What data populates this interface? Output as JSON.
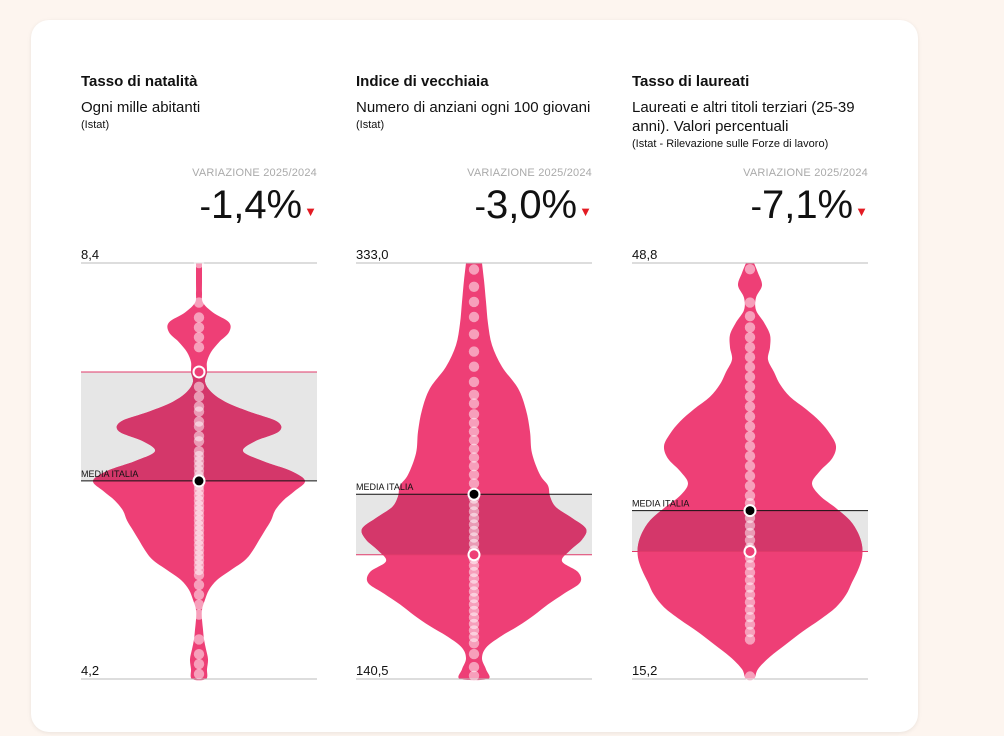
{
  "colors": {
    "violin": "#ee3f76",
    "violin_over_band": "#d4376a",
    "band": "#e6e6e6",
    "band_edge": "#e03a6a",
    "dot": "#ffffff",
    "decline": "#e31b23"
  },
  "chart_data": [
    {
      "type": "violin",
      "title": "Tasso di natalità",
      "subtitle": "Ogni mille abitanti",
      "source": "(Istat)",
      "variation_label": "VARIAZIONE 2025/2024",
      "variation_sign": "-",
      "variation_value": "1,4%",
      "variation_arrow": "▼",
      "y_max_label": "8,4",
      "y_min_label": "4,2",
      "ylim": [
        4.2,
        8.4
      ],
      "italy_average": {
        "label": "MEDIA ITALIA",
        "value": 6.2
      },
      "highlight": 7.3,
      "density": [
        [
          8.4,
          3
        ],
        [
          8.3,
          3
        ],
        [
          8.2,
          3
        ],
        [
          8.1,
          3
        ],
        [
          8.0,
          4
        ],
        [
          7.9,
          14
        ],
        [
          7.8,
          30
        ],
        [
          7.7,
          30
        ],
        [
          7.6,
          20
        ],
        [
          7.5,
          12
        ],
        [
          7.4,
          8
        ],
        [
          7.3,
          8
        ],
        [
          7.2,
          6
        ],
        [
          7.1,
          12
        ],
        [
          7.0,
          26
        ],
        [
          6.9,
          50
        ],
        [
          6.8,
          78
        ],
        [
          6.7,
          80
        ],
        [
          6.6,
          56
        ],
        [
          6.5,
          44
        ],
        [
          6.4,
          64
        ],
        [
          6.3,
          92
        ],
        [
          6.2,
          106
        ],
        [
          6.1,
          96
        ],
        [
          6.0,
          84
        ],
        [
          5.9,
          76
        ],
        [
          5.8,
          72
        ],
        [
          5.7,
          66
        ],
        [
          5.6,
          60
        ],
        [
          5.5,
          54
        ],
        [
          5.4,
          46
        ],
        [
          5.3,
          32
        ],
        [
          5.2,
          18
        ],
        [
          5.1,
          10
        ],
        [
          5.0,
          6
        ],
        [
          4.9,
          3
        ],
        [
          4.8,
          3
        ],
        [
          4.7,
          4
        ],
        [
          4.6,
          5
        ],
        [
          4.5,
          7
        ],
        [
          4.4,
          9
        ],
        [
          4.3,
          8
        ],
        [
          4.2,
          7
        ]
      ],
      "points": [
        8.4,
        8.0,
        7.85,
        7.75,
        7.65,
        7.55,
        7.3,
        7.15,
        7.05,
        6.95,
        6.9,
        6.8,
        6.75,
        6.65,
        6.6,
        6.5,
        6.45,
        6.4,
        6.35,
        6.3,
        6.25,
        6.2,
        6.2,
        6.15,
        6.1,
        6.05,
        6.0,
        5.95,
        5.9,
        5.85,
        5.8,
        5.75,
        5.7,
        5.65,
        5.6,
        5.55,
        5.5,
        5.45,
        5.4,
        5.35,
        5.3,
        5.25,
        5.15,
        5.05,
        4.95,
        4.85,
        4.6,
        4.45,
        4.35,
        4.25
      ]
    },
    {
      "type": "violin",
      "title": "Indice di vecchiaia",
      "subtitle": "Numero di anziani ogni 100 giovani",
      "source": "(Istat)",
      "variation_label": "VARIAZIONE 2025/2024",
      "variation_sign": "-",
      "variation_value": "3,0%",
      "variation_arrow": "▼",
      "y_max_label": "333,0",
      "y_min_label": "140,5",
      "ylim": [
        140.5,
        333.0
      ],
      "italy_average": {
        "label": "MEDIA ITALIA",
        "value": 226
      },
      "highlight": 198,
      "density": [
        [
          333,
          8
        ],
        [
          325,
          10
        ],
        [
          315,
          12
        ],
        [
          305,
          14
        ],
        [
          295,
          18
        ],
        [
          285,
          28
        ],
        [
          275,
          44
        ],
        [
          265,
          52
        ],
        [
          255,
          56
        ],
        [
          245,
          58
        ],
        [
          235,
          66
        ],
        [
          230,
          74
        ],
        [
          225,
          76
        ],
        [
          220,
          82
        ],
        [
          215,
          98
        ],
        [
          210,
          112
        ],
        [
          205,
          108
        ],
        [
          200,
          96
        ],
        [
          195,
          88
        ],
        [
          190,
          104
        ],
        [
          185,
          106
        ],
        [
          180,
          90
        ],
        [
          175,
          74
        ],
        [
          170,
          60
        ],
        [
          165,
          44
        ],
        [
          160,
          26
        ],
        [
          155,
          12
        ],
        [
          150,
          8
        ],
        [
          145,
          12
        ],
        [
          140.5,
          14
        ]
      ],
      "points": [
        330,
        322,
        315,
        308,
        300,
        292,
        285,
        278,
        272,
        268,
        263,
        259,
        255,
        251,
        247,
        243,
        239,
        235,
        231,
        226,
        224,
        221,
        218,
        215,
        212,
        209,
        206,
        203,
        200,
        198,
        196,
        193,
        190,
        187,
        184,
        181,
        178,
        175,
        172,
        169,
        166,
        163,
        160,
        157,
        152,
        146,
        142
      ]
    },
    {
      "type": "violin",
      "title": "Tasso di laureati",
      "subtitle": "Laureati e altri titoli terziari (25-39 anni). Valori percentuali",
      "source": "(Istat - Rilevazione sulle Forze di lavoro)",
      "variation_label": "VARIAZIONE 2025/2024",
      "variation_sign": "-",
      "variation_value": "7,1%",
      "variation_arrow": "▼",
      "y_max_label": "48,8",
      "y_min_label": "15,2",
      "ylim": [
        15.2,
        48.8
      ],
      "italy_average": {
        "label": "MEDIA ITALIA",
        "value": 28.8
      },
      "highlight": 25.5,
      "density": [
        [
          48.8,
          4
        ],
        [
          48.0,
          8
        ],
        [
          47.0,
          12
        ],
        [
          46.0,
          6
        ],
        [
          45.0,
          6
        ],
        [
          44.0,
          14
        ],
        [
          43.0,
          20
        ],
        [
          42.0,
          20
        ],
        [
          41.0,
          18
        ],
        [
          40.0,
          24
        ],
        [
          39.0,
          30
        ],
        [
          38.0,
          40
        ],
        [
          37.0,
          56
        ],
        [
          36.0,
          70
        ],
        [
          35.0,
          80
        ],
        [
          34.0,
          86
        ],
        [
          33.0,
          82
        ],
        [
          32.0,
          70
        ],
        [
          31.0,
          62
        ],
        [
          30.0,
          70
        ],
        [
          29.0,
          86
        ],
        [
          28.0,
          100
        ],
        [
          27.0,
          108
        ],
        [
          26.0,
          112
        ],
        [
          25.0,
          112
        ],
        [
          24.0,
          108
        ],
        [
          23.0,
          102
        ],
        [
          22.0,
          96
        ],
        [
          21.0,
          86
        ],
        [
          20.0,
          70
        ],
        [
          19.0,
          52
        ],
        [
          18.0,
          36
        ],
        [
          17.0,
          20
        ],
        [
          16.0,
          8
        ],
        [
          15.2,
          4
        ]
      ],
      "points": [
        48.3,
        45.6,
        44.5,
        43.6,
        42.8,
        42.0,
        41.2,
        40.4,
        39.6,
        38.8,
        38.0,
        37.2,
        36.4,
        35.6,
        34.8,
        34.0,
        33.2,
        32.4,
        31.6,
        30.8,
        30.0,
        29.4,
        28.8,
        28.2,
        27.6,
        27.0,
        26.4,
        25.8,
        25.5,
        25.0,
        24.4,
        23.8,
        23.2,
        22.6,
        22.0,
        21.4,
        20.8,
        20.2,
        19.6,
        19.0,
        18.4,
        15.4
      ]
    }
  ]
}
